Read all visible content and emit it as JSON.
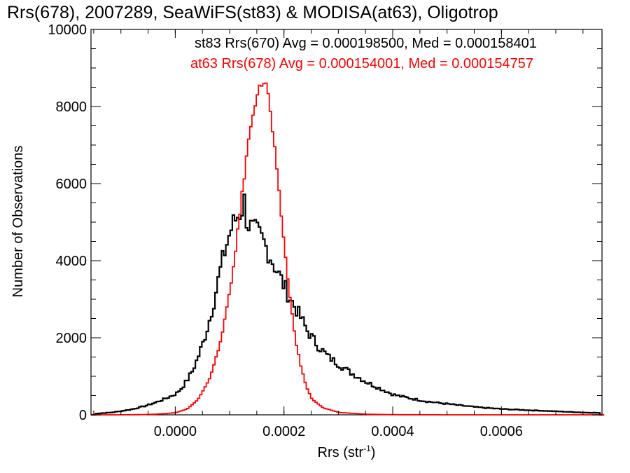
{
  "chart_data": {
    "type": "line",
    "title": "Rrs(678), 2007289, SeaWiFS(st83) & MODISA(at63), Oligotrop",
    "xlabel_main": "Rrs (str",
    "xlabel_sup": "-1",
    "xlabel_close": ")",
    "ylabel": "Number of Observations",
    "xlim": [
      -0.000155,
      0.000785
    ],
    "ylim": [
      0,
      10000
    ],
    "xticks": [
      0.0,
      0.0002,
      0.0004,
      0.0006
    ],
    "xtick_labels": [
      "0.0000",
      "0.0002",
      "0.0004",
      "0.0006"
    ],
    "yticks": [
      0,
      2000,
      4000,
      6000,
      8000,
      10000
    ],
    "ytick_labels": [
      "0",
      "2000",
      "4000",
      "6000",
      "8000",
      "10000"
    ],
    "grid": false,
    "legend_position": "top-right",
    "series": [
      {
        "name": "st83 Rrs(670) Avg = 0.000198500, Med = 0.000158401",
        "color": "#000000",
        "x": [
          -0.00015,
          -0.00012,
          -0.0001,
          -8e-05,
          -6e-05,
          -4e-05,
          -2e-05,
          0.0,
          1e-05,
          2e-05,
          3e-05,
          4e-05,
          5e-05,
          6e-05,
          7e-05,
          8e-05,
          9e-05,
          0.0001,
          0.00011,
          0.00012,
          0.000125,
          0.00013,
          0.00014,
          0.00015,
          0.00016,
          0.00017,
          0.00018,
          0.00019,
          0.0002,
          0.00021,
          0.00022,
          0.00023,
          0.00024,
          0.00026,
          0.00028,
          0.0003,
          0.00032,
          0.00035,
          0.00038,
          0.0004,
          0.00043,
          0.00046,
          0.0005,
          0.00055,
          0.0006,
          0.00065,
          0.0007,
          0.00075,
          0.00078
        ],
        "y": [
          30,
          60,
          100,
          150,
          220,
          310,
          420,
          550,
          700,
          900,
          1150,
          1500,
          1900,
          2400,
          3000,
          3700,
          4300,
          4800,
          5100,
          5300,
          5550,
          5000,
          4800,
          4700,
          4500,
          4200,
          3900,
          3600,
          3300,
          3000,
          2750,
          2500,
          2200,
          1800,
          1500,
          1300,
          1100,
          850,
          650,
          520,
          430,
          350,
          280,
          200,
          150,
          120,
          90,
          60,
          50
        ]
      },
      {
        "name": "at63 Rrs(678) Avg = 0.000154001, Med = 0.000154757",
        "color": "#ff0000",
        "x": [
          -0.00015,
          -0.0001,
          -5e-05,
          -2e-05,
          0.0,
          2e-05,
          4e-05,
          6e-05,
          8e-05,
          0.0001,
          0.00011,
          0.00012,
          0.00013,
          0.00014,
          0.00015,
          0.00016,
          0.000165,
          0.00017,
          0.00018,
          0.00019,
          0.0002,
          0.00021,
          0.00022,
          0.00023,
          0.00024,
          0.00025,
          0.00027,
          0.0003,
          0.00035,
          0.0004,
          0.0005,
          0.0006,
          0.0007,
          0.00078
        ],
        "y": [
          0,
          0,
          10,
          30,
          60,
          150,
          400,
          900,
          1800,
          3300,
          4400,
          5600,
          6800,
          7800,
          8400,
          8650,
          8600,
          8200,
          7000,
          5600,
          4200,
          2900,
          1900,
          1200,
          700,
          400,
          180,
          60,
          15,
          5,
          0,
          0,
          0,
          0
        ]
      }
    ]
  }
}
